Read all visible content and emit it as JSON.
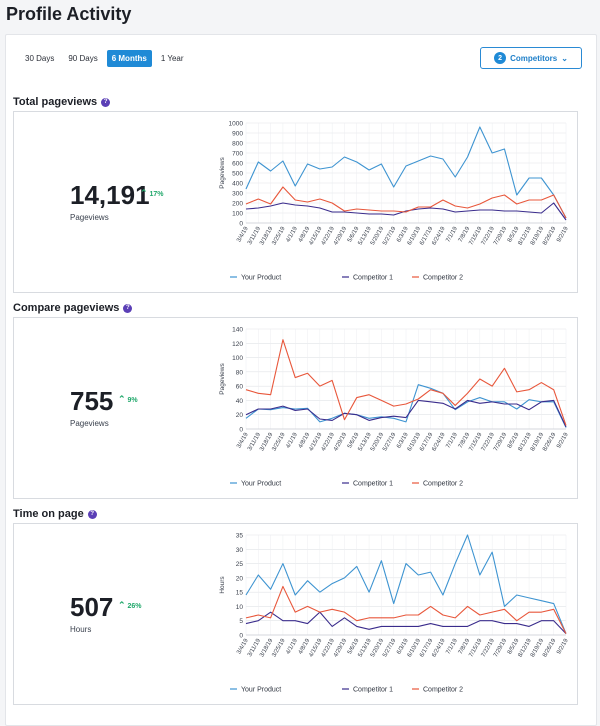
{
  "page": {
    "title": "Profile Activity"
  },
  "range_tabs": [
    {
      "label": "30 Days",
      "active": false
    },
    {
      "label": "90 Days",
      "active": false
    },
    {
      "label": "6 Months",
      "active": true
    },
    {
      "label": "1 Year",
      "active": false
    }
  ],
  "competitors": {
    "count": "2",
    "label": "Competitors"
  },
  "colors": {
    "your_product": "#3e94d1",
    "competitor_1": "#3a2c8c",
    "competitor_2": "#e8573b",
    "accent": "#1f8ad6",
    "trend_up": "#22a86c"
  },
  "dates": [
    "3/4/19",
    "3/11/19",
    "3/18/19",
    "3/25/19",
    "4/1/19",
    "4/8/19",
    "4/15/19",
    "4/22/19",
    "4/29/19",
    "5/6/19",
    "5/13/19",
    "5/20/19",
    "5/27/19",
    "6/3/19",
    "6/10/19",
    "6/17/19",
    "6/24/19",
    "7/1/19",
    "7/8/19",
    "7/15/19",
    "7/22/19",
    "7/29/19",
    "8/5/19",
    "8/12/19",
    "8/19/19",
    "8/26/19",
    "9/2/19"
  ],
  "sections": [
    {
      "title": "Total pageviews",
      "metric_value": "14,191",
      "trend": "17%",
      "metric_label": "Pageviews",
      "chart_data": {
        "type": "line",
        "ylabel": "Pageviews",
        "ylim": [
          0,
          1000
        ],
        "yticks": [
          0,
          100,
          200,
          300,
          400,
          500,
          600,
          700,
          800,
          900,
          1000
        ],
        "xticklabels": [
          "3/4/19",
          "3/11/19",
          "3/18/19",
          "3/25/19",
          "4/1/19",
          "4/8/19",
          "4/15/19",
          "4/22/19",
          "4/29/19",
          "5/6/19",
          "5/13/19",
          "5/20/19",
          "5/27/19",
          "6/3/19",
          "6/10/19",
          "6/17/19",
          "6/24/19",
          "7/1/19",
          "7/8/19",
          "7/15/19",
          "7/22/19",
          "7/29/19",
          "8/5/19",
          "8/12/19",
          "8/19/19",
          "8/26/19",
          "9/2/19"
        ],
        "legend": [
          "Your Product",
          "Competitor 1",
          "Competitor 2"
        ],
        "series": [
          {
            "name": "Your Product",
            "values": [
              340,
              610,
              520,
              620,
              370,
              590,
              540,
              560,
              660,
              610,
              530,
              590,
              360,
              570,
              620,
              670,
              640,
              460,
              660,
              960,
              700,
              740,
              280,
              450,
              450,
              280,
              50
            ]
          },
          {
            "name": "Competitor 1",
            "values": [
              140,
              150,
              170,
              200,
              180,
              170,
              150,
              110,
              110,
              100,
              90,
              90,
              80,
              120,
              140,
              150,
              140,
              110,
              120,
              130,
              130,
              120,
              120,
              110,
              100,
              200,
              30
            ]
          },
          {
            "name": "Competitor 2",
            "values": [
              190,
              240,
              190,
              360,
              230,
              210,
              240,
              200,
              120,
              140,
              130,
              120,
              120,
              110,
              160,
              160,
              230,
              170,
              150,
              190,
              250,
              280,
              190,
              230,
              230,
              280,
              50
            ]
          }
        ]
      }
    },
    {
      "title": "Compare pageviews",
      "metric_value": "755",
      "trend": "9%",
      "metric_label": "Pageviews",
      "chart_data": {
        "type": "line",
        "ylabel": "Pageviews",
        "ylim": [
          0,
          140
        ],
        "yticks": [
          0,
          20,
          40,
          60,
          80,
          100,
          120,
          140
        ],
        "xticklabels": [
          "3/4/19",
          "3/11/19",
          "3/18/19",
          "3/25/19",
          "4/1/19",
          "4/8/19",
          "4/15/19",
          "4/22/19",
          "4/29/19",
          "5/6/19",
          "5/13/19",
          "5/20/19",
          "5/27/19",
          "6/3/19",
          "6/10/19",
          "6/17/19",
          "6/24/19",
          "7/1/19",
          "7/8/19",
          "7/15/19",
          "7/22/19",
          "7/29/19",
          "8/5/19",
          "8/12/19",
          "8/19/19",
          "8/26/19",
          "9/2/19"
        ],
        "legend": [
          "Your Product",
          "Competitor 1",
          "Competitor 2"
        ],
        "series": [
          {
            "name": "Your Product",
            "values": [
              15,
              28,
              27,
              30,
              28,
              29,
              10,
              15,
              22,
              20,
              15,
              17,
              15,
              10,
              62,
              57,
              50,
              27,
              38,
              44,
              38,
              38,
              28,
              41,
              38,
              38,
              2
            ]
          },
          {
            "name": "Competitor 1",
            "values": [
              20,
              28,
              28,
              32,
              26,
              28,
              14,
              12,
              22,
              20,
              12,
              16,
              18,
              16,
              40,
              38,
              36,
              28,
              40,
              36,
              38,
              35,
              35,
              27,
              38,
              40,
              3
            ]
          },
          {
            "name": "Competitor 2",
            "values": [
              55,
              50,
              48,
              125,
              72,
              78,
              60,
              68,
              13,
              44,
              48,
              40,
              32,
              35,
              42,
              55,
              50,
              33,
              50,
              70,
              60,
              85,
              52,
              55,
              65,
              55,
              5
            ]
          }
        ]
      }
    },
    {
      "title": "Time on page",
      "metric_value": "507",
      "trend": "26%",
      "metric_label": "Hours",
      "chart_data": {
        "type": "line",
        "ylabel": "Hours",
        "ylim": [
          0,
          35
        ],
        "yticks": [
          0,
          5,
          10,
          15,
          20,
          25,
          30,
          35
        ],
        "xticklabels": [
          "3/4/19",
          "3/11/19",
          "3/18/19",
          "3/25/19",
          "4/1/19",
          "4/8/19",
          "4/15/19",
          "4/22/19",
          "4/29/19",
          "5/6/19",
          "5/13/19",
          "5/20/19",
          "5/27/19",
          "6/3/19",
          "6/10/19",
          "6/17/19",
          "6/24/19",
          "7/1/19",
          "7/8/19",
          "7/15/19",
          "7/22/19",
          "7/29/19",
          "8/5/19",
          "8/12/19",
          "8/19/19",
          "8/26/19",
          "9/2/19"
        ],
        "legend": [
          "Your Product",
          "Competitor 1",
          "Competitor 2"
        ],
        "series": [
          {
            "name": "Your Product",
            "values": [
              14,
              21,
              16,
              25,
              14,
              19,
              15,
              18,
              20,
              24,
              15,
              26,
              11,
              25,
              21,
              22,
              14,
              25,
              35,
              21,
              29,
              10,
              14,
              13,
              12,
              11,
              0.5
            ]
          },
          {
            "name": "Competitor 1",
            "values": [
              4,
              5,
              8,
              5,
              5,
              4,
              8,
              3,
              6,
              3,
              2,
              3,
              3,
              3,
              3,
              4,
              3,
              3,
              3,
              5,
              5,
              4,
              4,
              3,
              5,
              5,
              0.5
            ]
          },
          {
            "name": "Competitor 2",
            "values": [
              6,
              7,
              6,
              17,
              8,
              10,
              8,
              9,
              8,
              5,
              6,
              6,
              6,
              7,
              7,
              10,
              7,
              6,
              10,
              7,
              8,
              9,
              5,
              8,
              8,
              9,
              0.5
            ]
          }
        ]
      }
    }
  ]
}
